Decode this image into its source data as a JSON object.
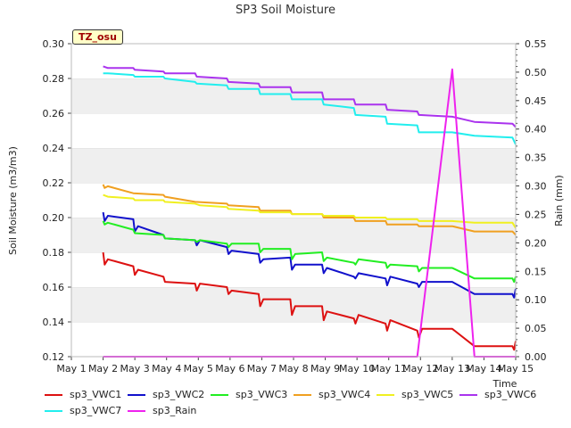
{
  "site_label": "TZ_osu",
  "chart_data": {
    "type": "line",
    "title": "SP3 Soil Moisture",
    "xlabel": "Time",
    "ylabel": "Soil Moisture (m3/m3)",
    "y2label": "Rain (mm)",
    "xticks": [
      "May 1",
      "May 2",
      "May 3",
      "May 4",
      "May 5",
      "May 6",
      "May 7",
      "May 8",
      "May 9",
      "May 10",
      "May 11",
      "May 12",
      "May 13",
      "May 14",
      "May 15"
    ],
    "xlim": [
      1,
      15
    ],
    "ylim": [
      0.12,
      0.3
    ],
    "yticks": [
      "0.12",
      "0.14",
      "0.16",
      "0.18",
      "0.20",
      "0.22",
      "0.24",
      "0.26",
      "0.28",
      "0.30"
    ],
    "y2lim": [
      0.0,
      0.55
    ],
    "y2ticks": [
      "0.00",
      "0.05",
      "0.10",
      "0.15",
      "0.20",
      "0.25",
      "0.30",
      "0.35",
      "0.40",
      "0.45",
      "0.50",
      "0.55"
    ],
    "legend_position": "bottom",
    "series": [
      {
        "name": "sp3_VWC1",
        "color": "#dd1111",
        "axis": "left",
        "points": [
          [
            2.0,
            0.18
          ],
          [
            2.05,
            0.173
          ],
          [
            2.15,
            0.176
          ],
          [
            2.95,
            0.172
          ],
          [
            3.0,
            0.167
          ],
          [
            3.1,
            0.17
          ],
          [
            3.9,
            0.166
          ],
          [
            3.95,
            0.163
          ],
          [
            4.9,
            0.162
          ],
          [
            4.95,
            0.158
          ],
          [
            5.05,
            0.162
          ],
          [
            5.9,
            0.16
          ],
          [
            5.95,
            0.156
          ],
          [
            6.05,
            0.158
          ],
          [
            6.9,
            0.156
          ],
          [
            6.95,
            0.149
          ],
          [
            7.05,
            0.153
          ],
          [
            7.9,
            0.153
          ],
          [
            7.95,
            0.144
          ],
          [
            8.05,
            0.149
          ],
          [
            8.9,
            0.149
          ],
          [
            8.95,
            0.141
          ],
          [
            9.05,
            0.146
          ],
          [
            9.9,
            0.142
          ],
          [
            9.95,
            0.139
          ],
          [
            10.05,
            0.144
          ],
          [
            10.9,
            0.139
          ],
          [
            10.95,
            0.135
          ],
          [
            11.05,
            0.141
          ],
          [
            11.9,
            0.135
          ],
          [
            11.95,
            0.131
          ],
          [
            12.05,
            0.136
          ],
          [
            13.0,
            0.136
          ],
          [
            13.7,
            0.126
          ],
          [
            14.9,
            0.126
          ],
          [
            14.95,
            0.124
          ],
          [
            15.0,
            0.129
          ]
        ]
      },
      {
        "name": "sp3_VWC2",
        "color": "#1111cc",
        "axis": "left",
        "points": [
          [
            2.0,
            0.203
          ],
          [
            2.05,
            0.198
          ],
          [
            2.15,
            0.201
          ],
          [
            2.95,
            0.199
          ],
          [
            3.0,
            0.192
          ],
          [
            3.1,
            0.195
          ],
          [
            3.9,
            0.19
          ],
          [
            3.95,
            0.188
          ],
          [
            4.9,
            0.187
          ],
          [
            4.95,
            0.184
          ],
          [
            5.05,
            0.187
          ],
          [
            5.9,
            0.183
          ],
          [
            5.95,
            0.179
          ],
          [
            6.05,
            0.181
          ],
          [
            6.9,
            0.179
          ],
          [
            6.95,
            0.174
          ],
          [
            7.05,
            0.176
          ],
          [
            7.9,
            0.177
          ],
          [
            7.95,
            0.17
          ],
          [
            8.05,
            0.173
          ],
          [
            8.9,
            0.173
          ],
          [
            8.95,
            0.168
          ],
          [
            9.05,
            0.171
          ],
          [
            9.9,
            0.166
          ],
          [
            9.95,
            0.165
          ],
          [
            10.05,
            0.168
          ],
          [
            10.9,
            0.165
          ],
          [
            10.95,
            0.161
          ],
          [
            11.05,
            0.166
          ],
          [
            11.9,
            0.162
          ],
          [
            11.95,
            0.16
          ],
          [
            12.05,
            0.163
          ],
          [
            13.0,
            0.163
          ],
          [
            13.7,
            0.156
          ],
          [
            14.9,
            0.156
          ],
          [
            14.95,
            0.154
          ],
          [
            15.0,
            0.159
          ]
        ]
      },
      {
        "name": "sp3_VWC3",
        "color": "#22ee22",
        "axis": "left",
        "points": [
          [
            2.0,
            0.198
          ],
          [
            2.05,
            0.196
          ],
          [
            2.15,
            0.197
          ],
          [
            2.95,
            0.193
          ],
          [
            3.0,
            0.191
          ],
          [
            3.9,
            0.19
          ],
          [
            3.95,
            0.188
          ],
          [
            4.9,
            0.187
          ],
          [
            4.95,
            0.186
          ],
          [
            5.05,
            0.187
          ],
          [
            5.9,
            0.185
          ],
          [
            5.95,
            0.183
          ],
          [
            6.05,
            0.185
          ],
          [
            6.9,
            0.185
          ],
          [
            6.95,
            0.18
          ],
          [
            7.05,
            0.182
          ],
          [
            7.9,
            0.182
          ],
          [
            7.95,
            0.176
          ],
          [
            8.05,
            0.179
          ],
          [
            8.9,
            0.18
          ],
          [
            8.95,
            0.175
          ],
          [
            9.05,
            0.177
          ],
          [
            9.9,
            0.174
          ],
          [
            9.95,
            0.173
          ],
          [
            10.05,
            0.176
          ],
          [
            10.9,
            0.174
          ],
          [
            10.95,
            0.171
          ],
          [
            11.05,
            0.173
          ],
          [
            11.9,
            0.172
          ],
          [
            11.95,
            0.169
          ],
          [
            12.05,
            0.171
          ],
          [
            13.0,
            0.171
          ],
          [
            13.7,
            0.165
          ],
          [
            14.9,
            0.165
          ],
          [
            14.95,
            0.163
          ],
          [
            15.0,
            0.166
          ]
        ]
      },
      {
        "name": "sp3_VWC4",
        "color": "#f0a020",
        "axis": "left",
        "points": [
          [
            2.0,
            0.219
          ],
          [
            2.05,
            0.217
          ],
          [
            2.15,
            0.218
          ],
          [
            2.95,
            0.214
          ],
          [
            3.9,
            0.213
          ],
          [
            3.95,
            0.212
          ],
          [
            4.9,
            0.209
          ],
          [
            5.9,
            0.208
          ],
          [
            5.95,
            0.207
          ],
          [
            6.9,
            0.206
          ],
          [
            6.95,
            0.204
          ],
          [
            7.9,
            0.204
          ],
          [
            7.95,
            0.202
          ],
          [
            8.9,
            0.202
          ],
          [
            8.95,
            0.2
          ],
          [
            9.9,
            0.2
          ],
          [
            9.95,
            0.198
          ],
          [
            10.9,
            0.198
          ],
          [
            10.95,
            0.196
          ],
          [
            11.9,
            0.196
          ],
          [
            11.95,
            0.195
          ],
          [
            13.0,
            0.195
          ],
          [
            13.7,
            0.192
          ],
          [
            14.9,
            0.192
          ],
          [
            15.0,
            0.19
          ]
        ]
      },
      {
        "name": "sp3_VWC5",
        "color": "#f0f020",
        "axis": "left",
        "points": [
          [
            2.0,
            0.213
          ],
          [
            2.15,
            0.212
          ],
          [
            2.95,
            0.211
          ],
          [
            3.0,
            0.21
          ],
          [
            3.9,
            0.21
          ],
          [
            3.95,
            0.209
          ],
          [
            4.9,
            0.208
          ],
          [
            5.05,
            0.207
          ],
          [
            5.9,
            0.206
          ],
          [
            5.95,
            0.205
          ],
          [
            6.9,
            0.204
          ],
          [
            6.95,
            0.203
          ],
          [
            7.9,
            0.203
          ],
          [
            7.95,
            0.202
          ],
          [
            8.9,
            0.202
          ],
          [
            8.95,
            0.201
          ],
          [
            9.9,
            0.201
          ],
          [
            9.95,
            0.2
          ],
          [
            10.9,
            0.2
          ],
          [
            10.95,
            0.199
          ],
          [
            11.9,
            0.199
          ],
          [
            11.95,
            0.198
          ],
          [
            13.0,
            0.198
          ],
          [
            13.7,
            0.197
          ],
          [
            14.9,
            0.197
          ],
          [
            15.0,
            0.194
          ]
        ]
      },
      {
        "name": "sp3_VWC6",
        "color": "#aa33ee",
        "axis": "left",
        "points": [
          [
            2.0,
            0.287
          ],
          [
            2.15,
            0.286
          ],
          [
            2.95,
            0.286
          ],
          [
            3.0,
            0.285
          ],
          [
            3.9,
            0.284
          ],
          [
            3.95,
            0.283
          ],
          [
            4.9,
            0.283
          ],
          [
            4.95,
            0.281
          ],
          [
            5.9,
            0.28
          ],
          [
            5.95,
            0.278
          ],
          [
            6.9,
            0.277
          ],
          [
            6.95,
            0.275
          ],
          [
            7.9,
            0.275
          ],
          [
            7.95,
            0.272
          ],
          [
            8.9,
            0.272
          ],
          [
            8.95,
            0.268
          ],
          [
            9.9,
            0.268
          ],
          [
            9.95,
            0.265
          ],
          [
            10.9,
            0.265
          ],
          [
            10.95,
            0.262
          ],
          [
            11.9,
            0.261
          ],
          [
            11.95,
            0.259
          ],
          [
            13.0,
            0.258
          ],
          [
            13.7,
            0.255
          ],
          [
            14.9,
            0.254
          ],
          [
            15.0,
            0.252
          ]
        ]
      },
      {
        "name": "sp3_VWC7",
        "color": "#22eeee",
        "axis": "left",
        "points": [
          [
            2.0,
            0.283
          ],
          [
            2.15,
            0.283
          ],
          [
            2.95,
            0.282
          ],
          [
            3.0,
            0.281
          ],
          [
            3.9,
            0.281
          ],
          [
            3.95,
            0.28
          ],
          [
            4.9,
            0.278
          ],
          [
            4.95,
            0.277
          ],
          [
            5.9,
            0.276
          ],
          [
            5.95,
            0.274
          ],
          [
            6.9,
            0.274
          ],
          [
            6.95,
            0.271
          ],
          [
            7.9,
            0.271
          ],
          [
            7.95,
            0.268
          ],
          [
            8.9,
            0.268
          ],
          [
            8.95,
            0.265
          ],
          [
            9.9,
            0.263
          ],
          [
            9.95,
            0.259
          ],
          [
            10.9,
            0.258
          ],
          [
            10.95,
            0.254
          ],
          [
            11.9,
            0.253
          ],
          [
            11.95,
            0.249
          ],
          [
            13.0,
            0.249
          ],
          [
            13.7,
            0.247
          ],
          [
            14.9,
            0.246
          ],
          [
            15.0,
            0.242
          ]
        ]
      },
      {
        "name": "sp3_Rain",
        "color": "#ee22ee",
        "axis": "right",
        "points": [
          [
            2.0,
            0.0
          ],
          [
            11.9,
            0.0
          ],
          [
            13.0,
            0.505
          ],
          [
            13.7,
            0.0
          ],
          [
            15.0,
            0.0
          ]
        ]
      }
    ]
  }
}
